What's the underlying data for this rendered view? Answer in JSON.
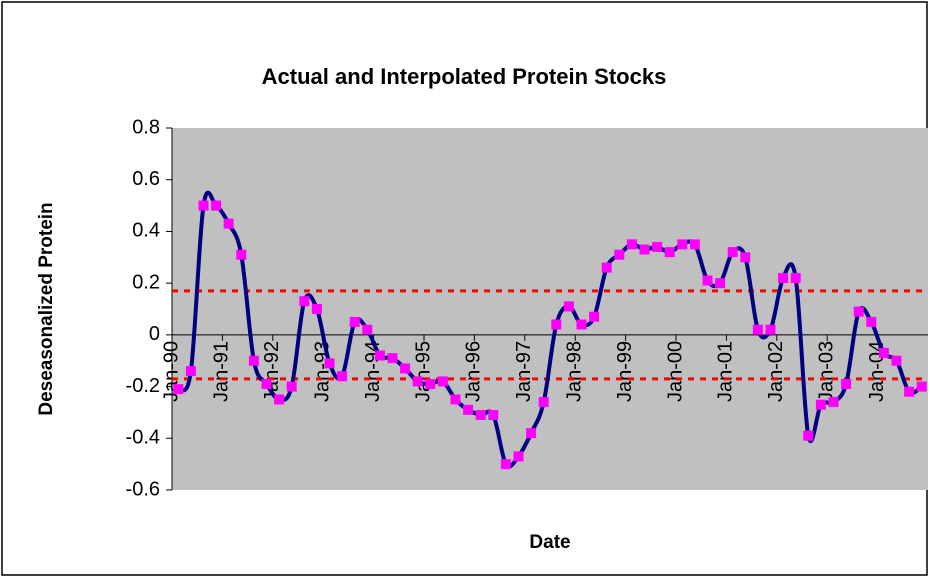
{
  "chart_data": {
    "type": "line",
    "title": "Actual and Interpolated Protein Stocks",
    "x_label": "Date",
    "y_label": "Deseasonalized Protein",
    "xlim": [
      1990,
      2005
    ],
    "xticks": [
      {
        "value": 1990,
        "label": "Jan-90"
      },
      {
        "value": 1991,
        "label": "Jan-91"
      },
      {
        "value": 1992,
        "label": "Jan-92"
      },
      {
        "value": 1993,
        "label": "Jan-93"
      },
      {
        "value": 1994,
        "label": "Jan-94"
      },
      {
        "value": 1995,
        "label": "Jan-95"
      },
      {
        "value": 1996,
        "label": "Jan-96"
      },
      {
        "value": 1997,
        "label": "Jan-97"
      },
      {
        "value": 1998,
        "label": "Jan-98"
      },
      {
        "value": 1999,
        "label": "Jan-99"
      },
      {
        "value": 2000,
        "label": "Jan-00"
      },
      {
        "value": 2001,
        "label": "Jan-01"
      },
      {
        "value": 2002,
        "label": "Jan-02"
      },
      {
        "value": 2003,
        "label": "Jan-03"
      },
      {
        "value": 2004,
        "label": "Jan-04"
      }
    ],
    "ylim": [
      -0.6,
      0.8
    ],
    "yticks": [
      -0.6,
      -0.4,
      -0.2,
      0,
      0.2,
      0.4,
      0.6,
      0.8
    ],
    "grid": false,
    "plot_background": "#c0c0c0",
    "smooth": true,
    "reference_lines": {
      "values": [
        0.17,
        -0.17
      ],
      "color": "#ff0000"
    },
    "series": [
      {
        "color": "#000080",
        "marker_color": "#ff00ff",
        "x": [
          1990.125,
          1990.375,
          1990.625,
          1990.875,
          1991.125,
          1991.375,
          1991.625,
          1991.875,
          1992.125,
          1992.375,
          1992.625,
          1992.875,
          1993.125,
          1993.375,
          1993.625,
          1993.875,
          1994.125,
          1994.375,
          1994.625,
          1994.875,
          1995.125,
          1995.375,
          1995.625,
          1995.875,
          1996.125,
          1996.375,
          1996.625,
          1996.875,
          1997.125,
          1997.375,
          1997.625,
          1997.875,
          1998.125,
          1998.375,
          1998.625,
          1998.875,
          1999.125,
          1999.375,
          1999.625,
          1999.875,
          2000.125,
          2000.375,
          2000.625,
          2000.875,
          2001.125,
          2001.375,
          2001.625,
          2001.875,
          2002.125,
          2002.375,
          2002.625,
          2002.875,
          2003.125,
          2003.375,
          2003.625,
          2003.875,
          2004.125,
          2004.375,
          2004.625,
          2004.875
        ],
        "values": [
          -0.21,
          -0.14,
          0.5,
          0.5,
          0.43,
          0.31,
          -0.1,
          -0.19,
          -0.25,
          -0.2,
          0.13,
          0.1,
          -0.11,
          -0.16,
          0.05,
          0.02,
          -0.08,
          -0.09,
          -0.13,
          -0.18,
          -0.19,
          -0.18,
          -0.25,
          -0.29,
          -0.31,
          -0.31,
          -0.5,
          -0.47,
          -0.38,
          -0.26,
          0.04,
          0.11,
          0.04,
          0.07,
          0.26,
          0.31,
          0.35,
          0.33,
          0.34,
          0.32,
          0.35,
          0.35,
          0.21,
          0.2,
          0.32,
          0.3,
          0.02,
          0.02,
          0.22,
          0.22,
          -0.39,
          -0.27,
          -0.26,
          -0.19,
          0.09,
          0.05,
          -0.07,
          -0.1,
          -0.22,
          -0.2
        ]
      }
    ]
  }
}
